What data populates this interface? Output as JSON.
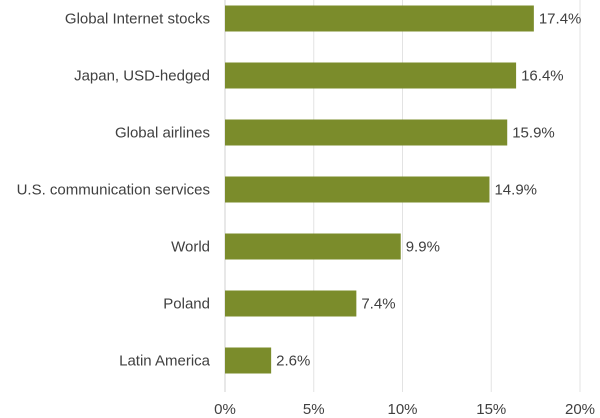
{
  "chart_data": {
    "type": "bar",
    "orientation": "horizontal",
    "categories": [
      "Global Internet stocks",
      "Japan, USD-hedged",
      "Global airlines",
      "U.S. communication services",
      "World",
      "Poland",
      "Latin America"
    ],
    "values": [
      17.4,
      16.4,
      15.9,
      14.9,
      9.9,
      7.4,
      2.6
    ],
    "value_labels": [
      "17.4%",
      "16.4%",
      "15.9%",
      "14.9%",
      "9.9%",
      "7.4%",
      "2.6%"
    ],
    "x_ticks": [
      0,
      5,
      10,
      15,
      20
    ],
    "x_tick_labels": [
      "0%",
      "5%",
      "10%",
      "15%",
      "20%"
    ],
    "xlim": [
      0,
      20
    ],
    "title": "",
    "xlabel": "",
    "ylabel": "",
    "grid": "vertical",
    "bar_color": "#7b8c2b"
  }
}
